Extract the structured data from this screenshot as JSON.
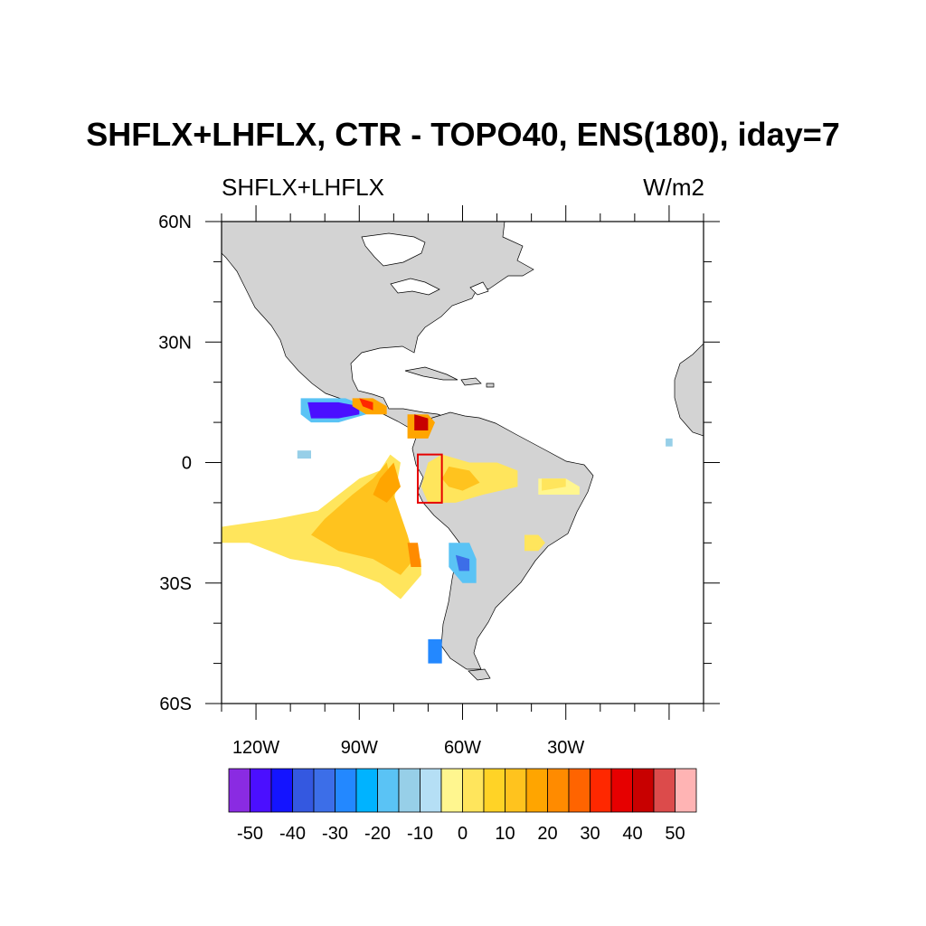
{
  "title": "SHFLX+LHFLX, CTR - TOPO40, ENS(180), iday=7",
  "subtitle_left": "SHFLX+LHFLX",
  "subtitle_right": "W/m2",
  "map": {
    "lon_range": [
      -130,
      10
    ],
    "lat_range": [
      -60,
      60
    ],
    "lat_tick_labels": [
      {
        "lat": 60,
        "label": "60N"
      },
      {
        "lat": 30,
        "label": "30N"
      },
      {
        "lat": 0,
        "label": "0"
      },
      {
        "lat": -30,
        "label": "30S"
      },
      {
        "lat": -60,
        "label": "60S"
      }
    ],
    "lon_tick_labels": [
      {
        "lon": -120,
        "label": "120W"
      },
      {
        "lon": -90,
        "label": "90W"
      },
      {
        "lon": -60,
        "label": "60W"
      },
      {
        "lon": -30,
        "label": "30W"
      }
    ],
    "region_box": {
      "lon": [
        -73,
        -66
      ],
      "lat": [
        -10,
        2
      ]
    }
  },
  "colorbar": {
    "colors": [
      "#8a2be2",
      "#4b0fff",
      "#1414ff",
      "#3458e0",
      "#3c6ee8",
      "#2388ff",
      "#00b3ff",
      "#5ac3f5",
      "#97cfe8",
      "#b5dff5",
      "#fff68f",
      "#ffe55c",
      "#ffd326",
      "#ffc31e",
      "#ffa500",
      "#ff8b00",
      "#ff6400",
      "#ff2800",
      "#e60000",
      "#c80000",
      "#dc4b4b",
      "#ffb4b4"
    ],
    "labels": [
      "-50",
      "-40",
      "-30",
      "-20",
      "-10",
      "0",
      "10",
      "20",
      "30",
      "40",
      "50"
    ]
  },
  "colors": {
    "land": "#d3d3d3",
    "ocean": "#ffffff",
    "box": "#e60000"
  }
}
